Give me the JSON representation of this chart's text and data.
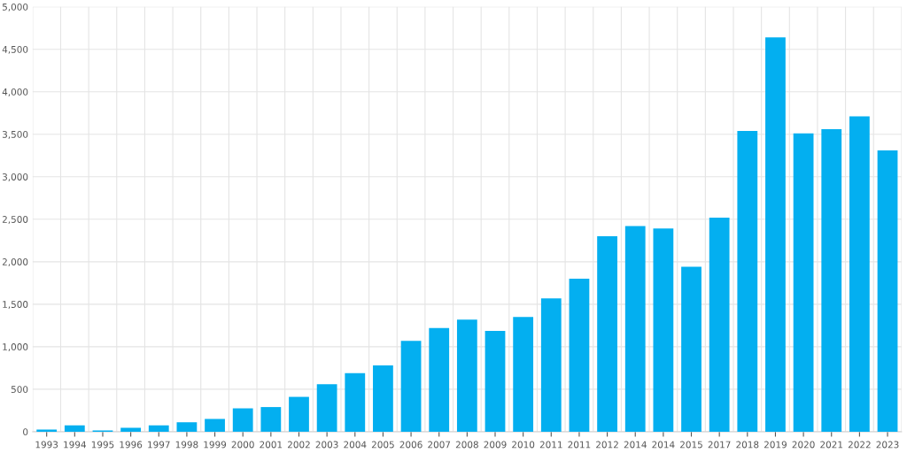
{
  "chart_data": {
    "type": "bar",
    "categories": [
      "1993",
      "1994",
      "1995",
      "1996",
      "1997",
      "1998",
      "1999",
      "2000",
      "2001",
      "2002",
      "2003",
      "2004",
      "2005",
      "2006",
      "2007",
      "2008",
      "2009",
      "2010",
      "2011",
      "2011",
      "2012",
      "2014",
      "2014",
      "2015",
      "2017",
      "2018",
      "2019",
      "2020",
      "2021",
      "2022",
      "2023"
    ],
    "values": [
      25,
      75,
      15,
      45,
      75,
      110,
      150,
      275,
      290,
      410,
      560,
      690,
      780,
      1070,
      1220,
      1320,
      1185,
      1350,
      1570,
      1800,
      2300,
      2420,
      2390,
      1940,
      2520,
      3540,
      4640,
      3510,
      3560,
      3710,
      3310
    ],
    "color": "#03aff0",
    "ylim": [
      0,
      5000
    ],
    "yticks": [
      {
        "value": 0,
        "label": "0"
      },
      {
        "value": 500,
        "label": "500"
      },
      {
        "value": 1000,
        "label": "1,000"
      },
      {
        "value": 1500,
        "label": "1,500"
      },
      {
        "value": 2000,
        "label": "2,000"
      },
      {
        "value": 2500,
        "label": "2,500"
      },
      {
        "value": 3000,
        "label": "3,000"
      },
      {
        "value": 3500,
        "label": "3,500"
      },
      {
        "value": 4000,
        "label": "4,000"
      },
      {
        "value": 4500,
        "label": "4,500"
      },
      {
        "value": 5000,
        "label": "5,000"
      }
    ],
    "grid": true
  }
}
